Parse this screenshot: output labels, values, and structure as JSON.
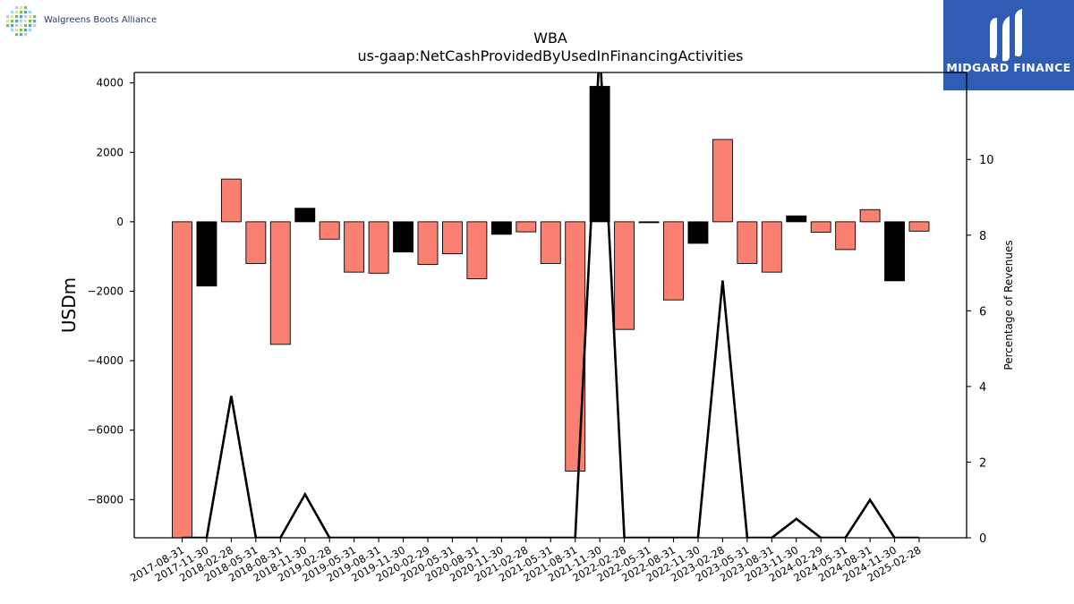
{
  "branding": {
    "left_logo_text": "Walgreens Boots Alliance",
    "right_logo_text": "MIDGARD FINANCE",
    "right_logo_bg": "#2e5db3"
  },
  "chart_data": {
    "type": "bar",
    "title": "WBA",
    "subtitle": "us-gaap:NetCashProvidedByUsedInFinancingActivities",
    "ylabel": "USDm",
    "y2label": "Percentage of Revenues",
    "ylim": [
      -9100,
      4300
    ],
    "y2lim": [
      0,
      12.3
    ],
    "yticks": [
      4000,
      2000,
      0,
      -2000,
      -4000,
      -6000,
      -8000
    ],
    "y2ticks": [
      0,
      2,
      4,
      6,
      8,
      10
    ],
    "categories": [
      "2017-08-31",
      "2017-11-30",
      "2018-02-28",
      "2018-05-31",
      "2018-08-31",
      "2018-11-30",
      "2019-02-28",
      "2019-05-31",
      "2019-08-31",
      "2019-11-30",
      "2020-02-29",
      "2020-05-31",
      "2020-08-31",
      "2020-11-30",
      "2021-02-28",
      "2021-05-31",
      "2021-08-31",
      "2021-11-30",
      "2022-02-28",
      "2022-05-31",
      "2022-08-31",
      "2022-11-30",
      "2023-02-28",
      "2023-05-31",
      "2023-08-31",
      "2023-11-30",
      "2024-02-29",
      "2024-05-31",
      "2024-08-31",
      "2024-11-30",
      "2025-02-28"
    ],
    "series": [
      {
        "values": [
          -9100,
          -1850,
          1230,
          -1200,
          -3530,
          390,
          -500,
          -1450,
          -1480,
          -870,
          -1230,
          -920,
          -1640,
          -360,
          -290,
          -1200,
          -7180,
          3900,
          -3100,
          -20,
          -2250,
          -620,
          2370,
          -1200,
          -1450,
          170,
          -300,
          -800,
          350,
          -1700,
          -270
        ],
        "colors": [
          "#fa8072",
          "#000000",
          "#fa8072",
          "#fa8072",
          "#fa8072",
          "#000000",
          "#fa8072",
          "#fa8072",
          "#fa8072",
          "#000000",
          "#fa8072",
          "#fa8072",
          "#fa8072",
          "#000000",
          "#fa8072",
          "#fa8072",
          "#fa8072",
          "#000000",
          "#fa8072",
          "#000000",
          "#fa8072",
          "#000000",
          "#fa8072",
          "#fa8072",
          "#fa8072",
          "#000000",
          "#fa8072",
          "#fa8072",
          "#fa8072",
          "#000000",
          "#fa8072"
        ]
      },
      {
        "axis": "right",
        "type": "line",
        "color": "#000000",
        "values": [
          0,
          0,
          3.75,
          0,
          0,
          1.15,
          0,
          0,
          0,
          0,
          0,
          0,
          0,
          0,
          0,
          0,
          0,
          13.0,
          0,
          0,
          0,
          0,
          6.8,
          0,
          0,
          0.5,
          0,
          0,
          1.0,
          0,
          0
        ]
      }
    ],
    "grid": false
  }
}
